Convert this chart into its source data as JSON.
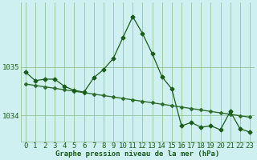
{
  "title": "Graphe pression niveau de la mer (hPa)",
  "bg_color": "#cff0f0",
  "grid_color": "#88bb88",
  "line_color": "#1a5c1a",
  "trend_color": "#2d6e2d",
  "xlim": [
    -0.5,
    23.5
  ],
  "ylim": [
    1033.45,
    1036.35
  ],
  "yticks": [
    1034,
    1035
  ],
  "xticks": [
    0,
    1,
    2,
    3,
    4,
    5,
    6,
    7,
    8,
    9,
    10,
    11,
    12,
    13,
    14,
    15,
    16,
    17,
    18,
    19,
    20,
    21,
    22,
    23
  ],
  "pressure_data": [
    1034.9,
    1034.72,
    1034.75,
    1034.75,
    1034.6,
    1034.52,
    1034.48,
    1034.78,
    1034.95,
    1035.18,
    1035.62,
    1036.05,
    1035.7,
    1035.28,
    1034.8,
    1034.55,
    1033.78,
    1033.85,
    1033.75,
    1033.78,
    1033.7,
    1034.08,
    1033.72,
    1033.65
  ],
  "trend_data": [
    1034.65,
    1034.62,
    1034.59,
    1034.56,
    1034.53,
    1034.5,
    1034.47,
    1034.44,
    1034.41,
    1034.38,
    1034.35,
    1034.32,
    1034.29,
    1034.26,
    1034.23,
    1034.2,
    1034.17,
    1034.14,
    1034.11,
    1034.08,
    1034.05,
    1034.02,
    1033.99,
    1033.96
  ],
  "xlabel_fontsize": 6.5,
  "ylabel_fontsize": 7,
  "tick_fontsize": 6.5,
  "marker_size": 2.5,
  "trend_marker_size": 2.0,
  "linewidth": 0.9,
  "trend_linewidth": 1.0
}
